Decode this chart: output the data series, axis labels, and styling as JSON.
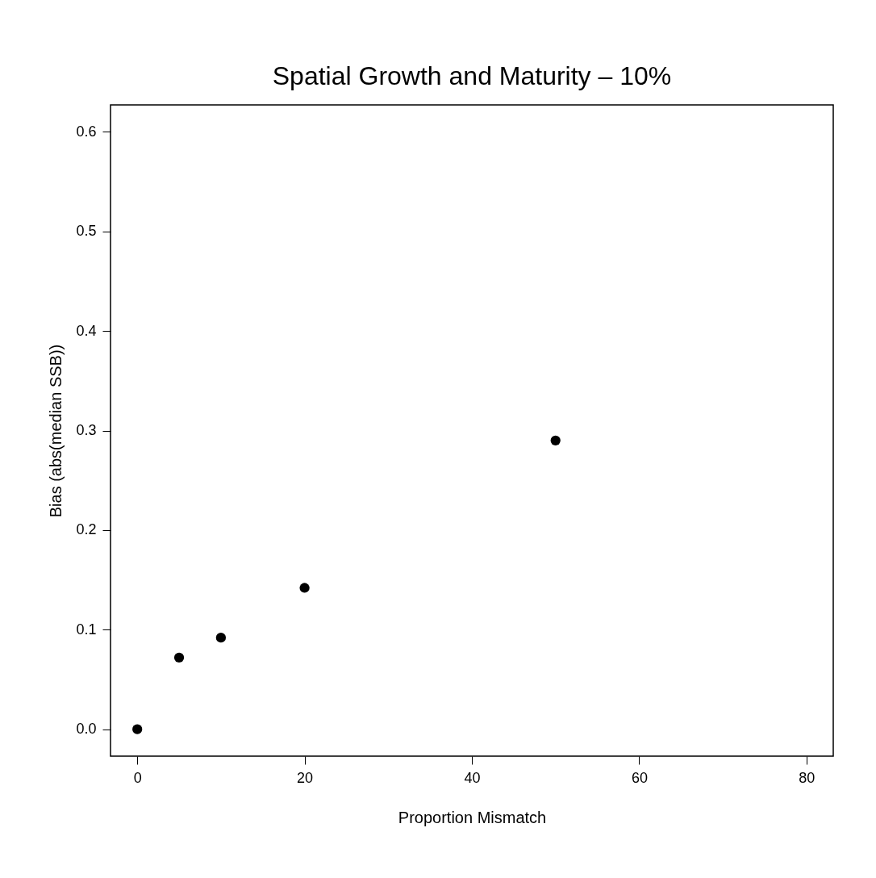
{
  "chart_data": {
    "type": "scatter",
    "title": "Spatial Growth and Maturity – 10%",
    "xlabel": "Proportion Mismatch",
    "ylabel": "Bias (abs(median SSB))",
    "x": [
      0,
      5,
      10,
      20,
      50
    ],
    "series": [
      {
        "color": "#000000",
        "values": [
          0.0,
          0.072,
          0.092,
          0.142,
          0.29
        ]
      }
    ],
    "xlim": [
      -3.2,
      83.2
    ],
    "xticks": [
      0,
      20,
      40,
      60,
      80
    ],
    "ylim": [
      -0.027,
      0.627
    ],
    "yticks": [
      {
        "value": 0,
        "label": "0.0"
      },
      {
        "value": 0.1,
        "label": "0.1"
      },
      {
        "value": 0.2,
        "label": "0.2"
      },
      {
        "value": 0.3,
        "label": "0.3"
      },
      {
        "value": 0.4,
        "label": "0.4"
      },
      {
        "value": 0.5,
        "label": "0.5"
      },
      {
        "value": 0.6,
        "label": "0.6"
      }
    ],
    "grid": false,
    "legend": false,
    "marker": "circle"
  }
}
